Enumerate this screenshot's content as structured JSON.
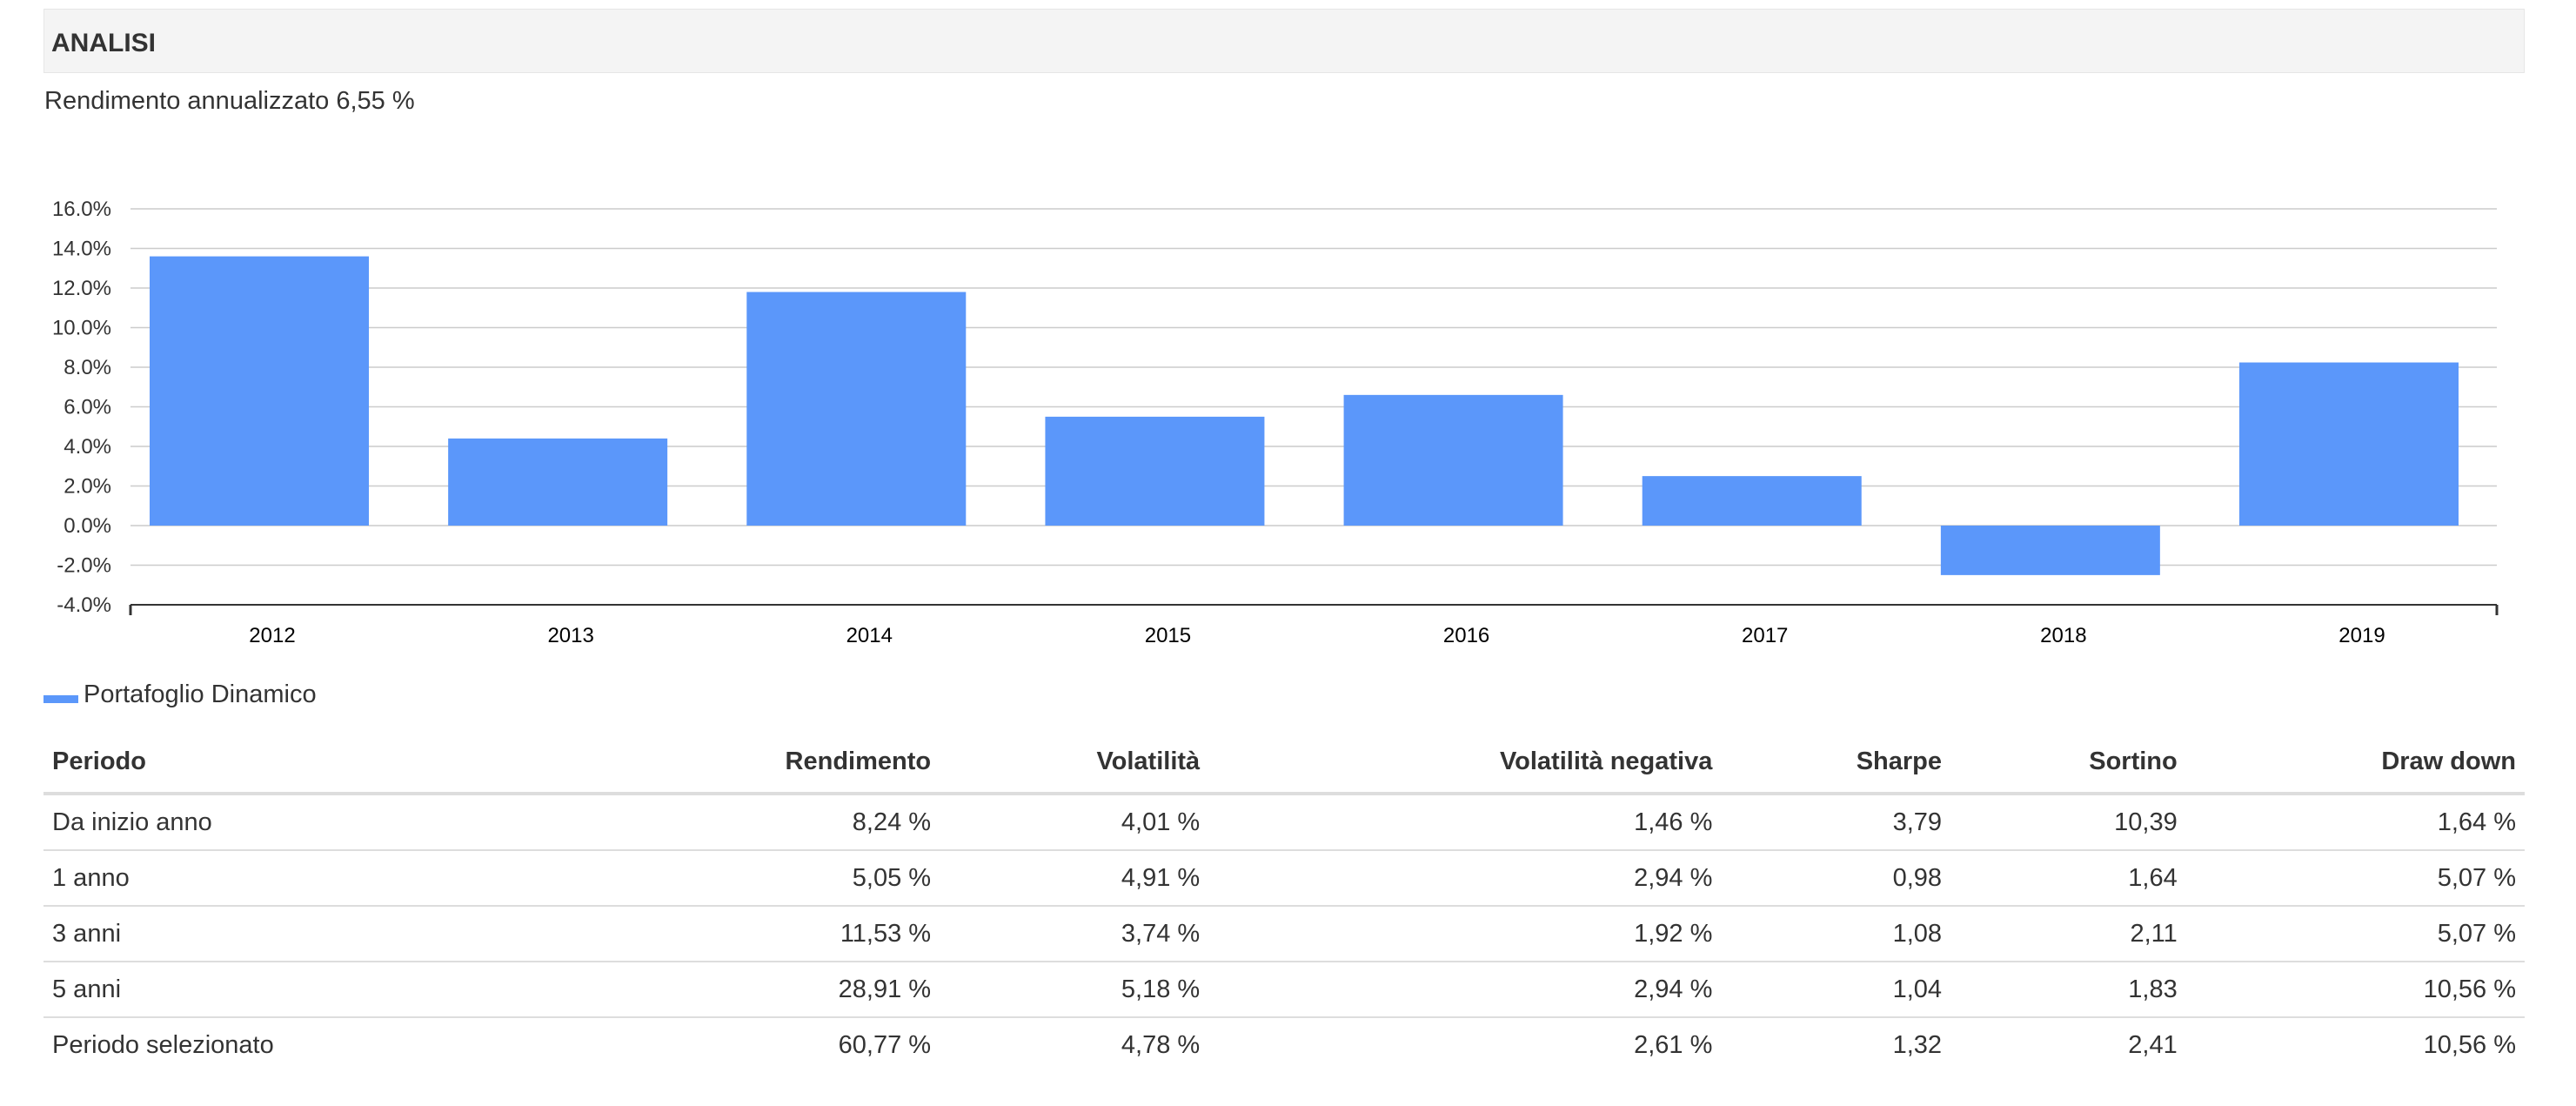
{
  "section": {
    "title": "ANALISI"
  },
  "summary": {
    "text": "Rendimento annualizzato 6,55 %"
  },
  "colors": {
    "bar": "#5b97fa",
    "grid": "#cccccc",
    "axis": "#333333"
  },
  "chart_data": {
    "type": "bar",
    "categories": [
      "2012",
      "2013",
      "2014",
      "2015",
      "2016",
      "2017",
      "2018",
      "2019"
    ],
    "series": [
      {
        "name": "Portafoglio Dinamico",
        "values": [
          13.6,
          4.4,
          11.8,
          5.5,
          6.6,
          2.5,
          -2.5,
          8.24
        ]
      }
    ],
    "ylim": [
      -4,
      16
    ],
    "yticks": [
      16,
      14,
      12,
      10,
      8,
      6,
      4,
      2,
      0,
      -2,
      -4
    ],
    "ytick_labels": [
      "16.0%",
      "14.0%",
      "12.0%",
      "10.0%",
      "8.0%",
      "6.0%",
      "4.0%",
      "2.0%",
      "0.0%",
      "-2.0%",
      "-4.0%"
    ],
    "grid": true,
    "legend_position": "bottom-left",
    "title": "",
    "xlabel": "",
    "ylabel": ""
  },
  "legend": {
    "label": "Portafoglio Dinamico"
  },
  "table": {
    "headers": [
      "Periodo",
      "Rendimento",
      "Volatilità",
      "Volatilità negativa",
      "Sharpe",
      "Sortino",
      "Draw down"
    ],
    "rows": [
      [
        "Da inizio anno",
        "8,24 %",
        "4,01 %",
        "1,46 %",
        "3,79",
        "10,39",
        "1,64 %"
      ],
      [
        "1 anno",
        "5,05 %",
        "4,91 %",
        "2,94 %",
        "0,98",
        "1,64",
        "5,07 %"
      ],
      [
        "3 anni",
        "11,53 %",
        "3,74 %",
        "1,92 %",
        "1,08",
        "2,11",
        "5,07 %"
      ],
      [
        "5 anni",
        "28,91 %",
        "5,18 %",
        "2,94 %",
        "1,04",
        "1,83",
        "10,56 %"
      ],
      [
        "Periodo selezionato",
        "60,77 %",
        "4,78 %",
        "2,61 %",
        "1,32",
        "2,41",
        "10,56 %"
      ]
    ]
  }
}
